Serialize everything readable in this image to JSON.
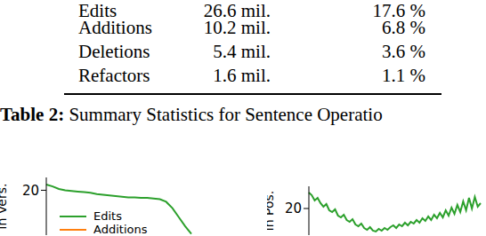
{
  "table": {
    "rows": [
      [
        "Edits",
        "26.6 mil.",
        "17.6 %"
      ],
      [
        "Additions",
        "10.2 mil.",
        "6.8 %"
      ],
      [
        "Deletions",
        "5.4 mil.",
        "3.6 %"
      ],
      [
        "Refactors",
        "1.6 mil.",
        "1.1 %"
      ]
    ]
  },
  "caption": {
    "label": "Table 2:",
    "text": "Summary Statistics for Sentence Operatio"
  },
  "chart_data": [
    {
      "type": "line",
      "y_label": "in Vers.",
      "ylim": [
        13,
        22
      ],
      "yticks": [
        20
      ],
      "legend": "lower left",
      "series": [
        {
          "name": "Edits",
          "color": "#2ca02c",
          "values": [
            20.9,
            20.6,
            20.2,
            20.0,
            19.9,
            19.8,
            19.7,
            19.6,
            19.4,
            19.3,
            19.2,
            19.1,
            19.0,
            18.9,
            18.9,
            18.8,
            18.8,
            18.7,
            18.6,
            18.2,
            17.2,
            15.8,
            14.4,
            13.2
          ]
        },
        {
          "name": "Additions",
          "color": "#ff7f0e",
          "values": [
            null,
            null,
            null,
            null,
            null,
            null,
            null,
            null,
            null,
            null,
            null,
            null,
            null,
            null,
            null,
            null,
            null,
            null,
            null,
            null,
            null,
            null,
            null,
            null
          ]
        }
      ]
    },
    {
      "type": "line",
      "y_label": "in Pos.",
      "ylim": [
        17,
        22.5
      ],
      "yticks": [
        20
      ],
      "series": [
        {
          "name": "Edits",
          "color": "#2ca02c",
          "values": [
            21.8,
            21.5,
            20.9,
            21.2,
            20.6,
            20.2,
            20.5,
            19.8,
            19.6,
            19.9,
            19.2,
            19.0,
            19.3,
            18.7,
            18.5,
            18.8,
            18.2,
            18.0,
            18.3,
            17.8,
            17.6,
            17.9,
            17.5,
            17.4,
            17.7,
            17.5,
            17.8,
            17.6,
            17.9,
            18.1,
            17.8,
            18.2,
            18.0,
            18.4,
            18.1,
            18.5,
            18.3,
            18.7,
            18.4,
            18.9,
            18.6,
            19.1,
            18.7,
            19.3,
            18.9,
            19.5,
            19.0,
            19.8,
            19.2,
            20.1,
            19.4,
            20.4,
            19.6,
            20.8,
            19.8,
            21.2,
            20.0,
            21.3,
            20.2,
            20.6
          ]
        }
      ]
    }
  ]
}
